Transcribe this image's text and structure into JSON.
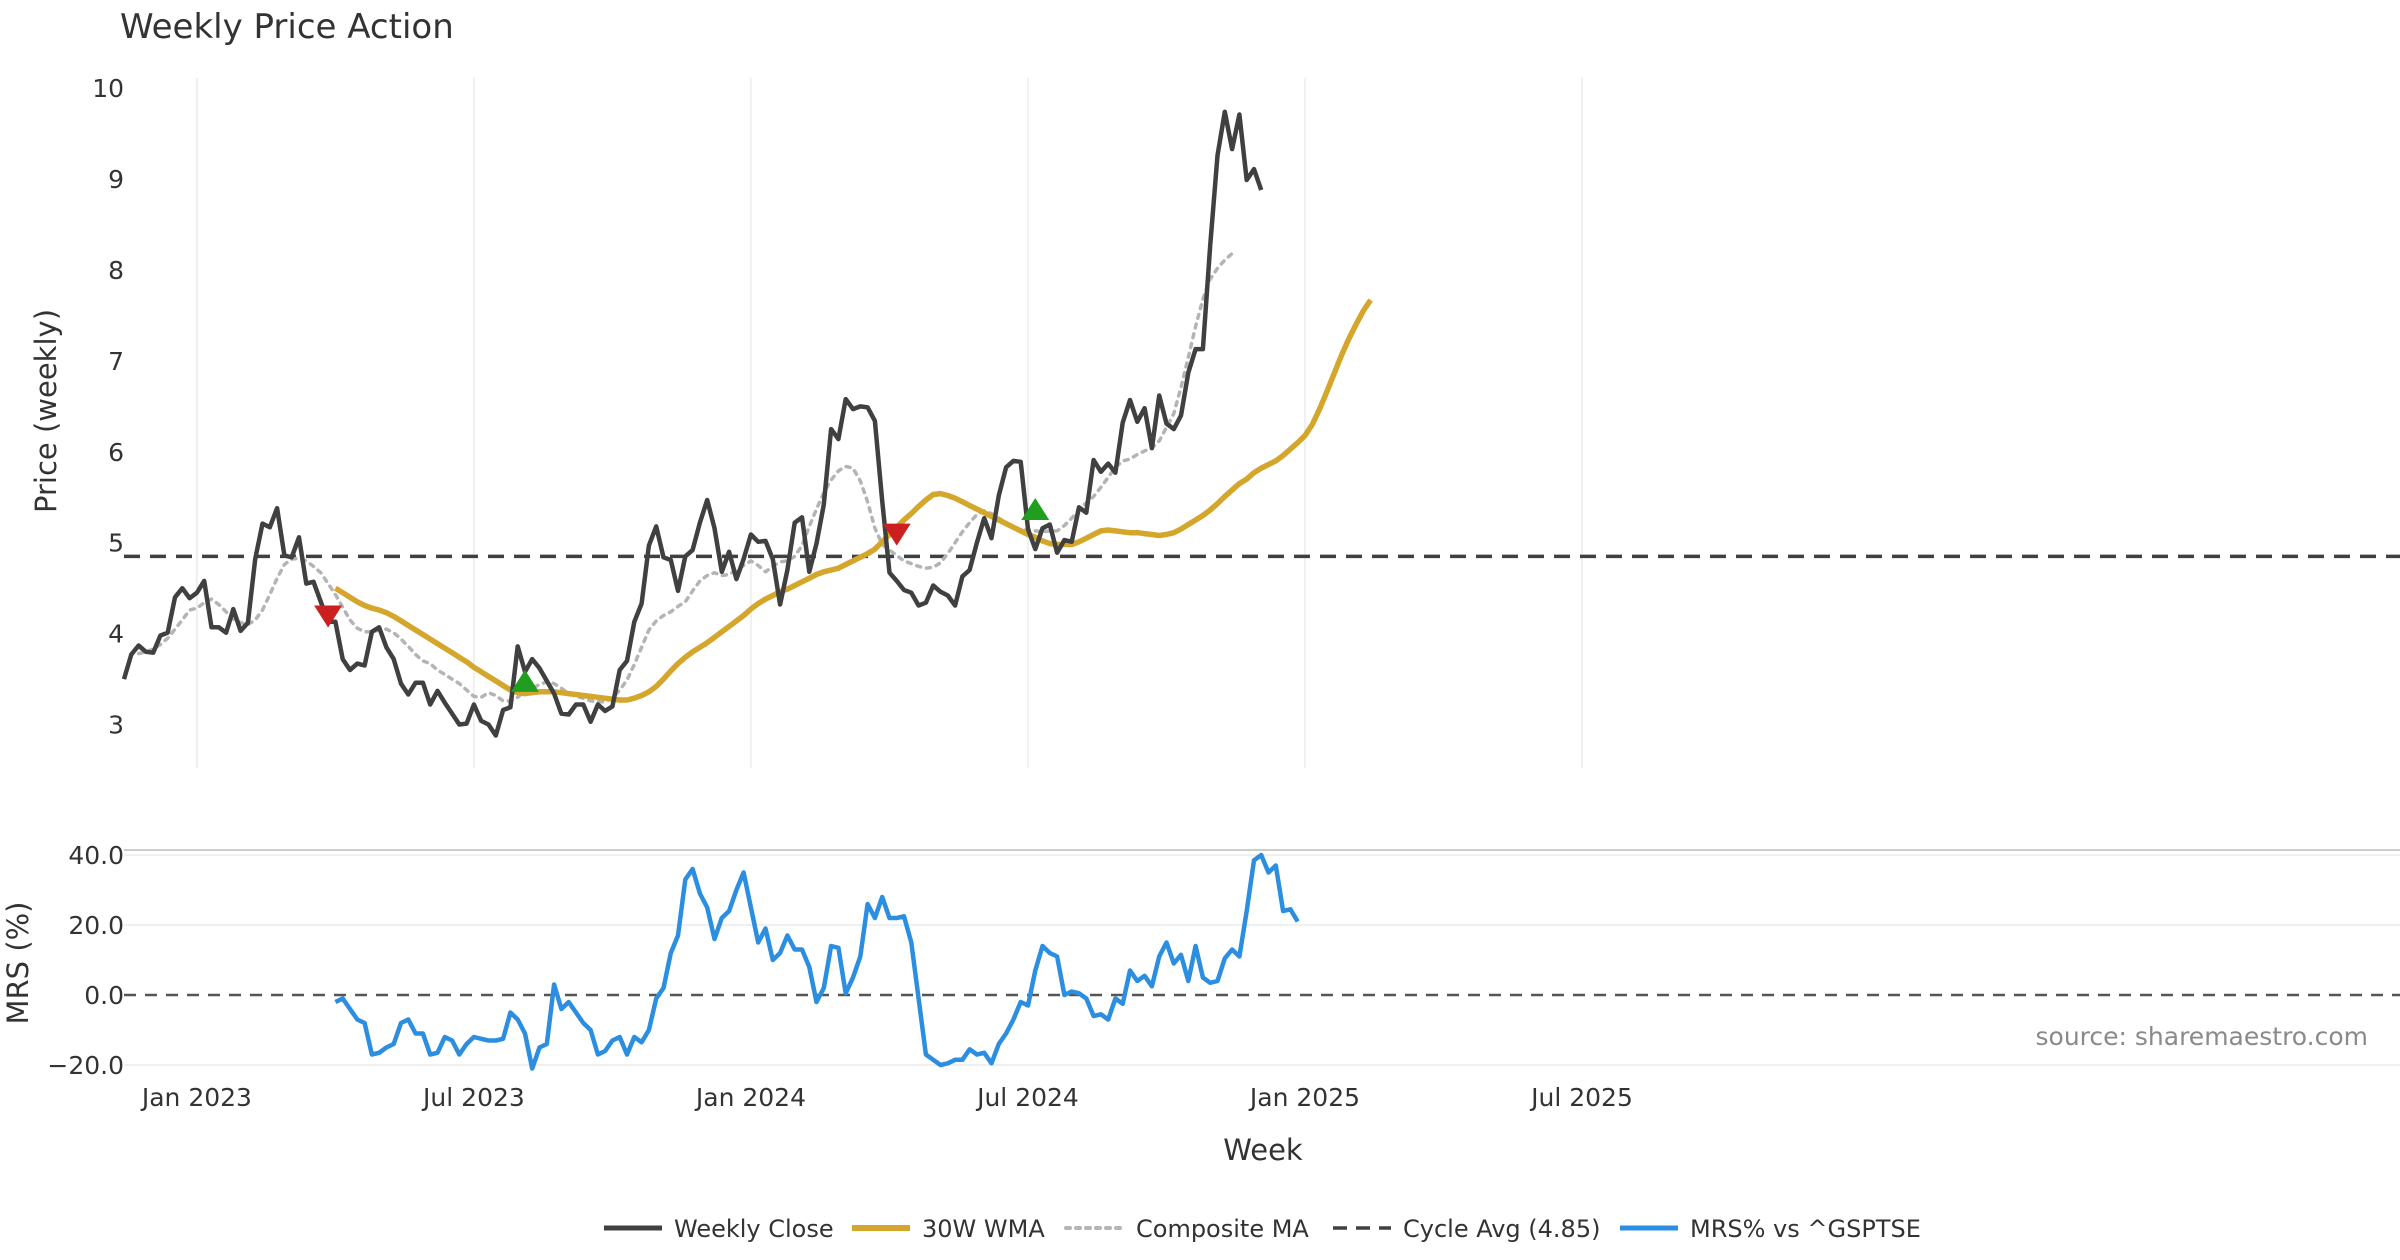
{
  "chart_data": {
    "type": "line",
    "title": "Weekly Price Action",
    "xlabel": "Week",
    "x_ticks": [
      "Jan 2023",
      "Jul 2023",
      "Jan 2024",
      "Jul 2024",
      "Jan 2025",
      "Jul 2025"
    ],
    "price_panel": {
      "ylabel": "Price (weekly)",
      "ylim": [
        2.5,
        10.2
      ],
      "y_ticks": [
        "3",
        "4",
        "5",
        "6",
        "7",
        "8",
        "9",
        "10"
      ],
      "cycle_avg": 4.85,
      "grid": "vertical"
    },
    "mrs_panel": {
      "ylabel": "MRS (%)",
      "ylim": [
        -22,
        42
      ],
      "y_ticks": [
        "40.0",
        "20.0",
        "0.0",
        "−20.0"
      ],
      "zero_line": 0,
      "grid": "horizontal"
    },
    "series": [
      {
        "name": "Weekly Close",
        "color": "#404040",
        "style": "solid",
        "panel": "price",
        "start_week": 0,
        "values": [
          3.5,
          3.77,
          3.87,
          3.8,
          3.79,
          3.98,
          4.01,
          4.4,
          4.5,
          4.39,
          4.45,
          4.58,
          4.07,
          4.07,
          4.01,
          4.27,
          4.03,
          4.12,
          4.82,
          5.21,
          5.17,
          5.38,
          4.86,
          4.84,
          5.06,
          4.55,
          4.57,
          4.35,
          4.13,
          4.13,
          3.72,
          3.6,
          3.67,
          3.65,
          4.02,
          4.07,
          3.85,
          3.72,
          3.45,
          3.33,
          3.46,
          3.46,
          3.22,
          3.37,
          3.24,
          3.12,
          3.0,
          3.01,
          3.22,
          3.04,
          3.0,
          2.88,
          3.16,
          3.19,
          3.86,
          3.58,
          3.72,
          3.62,
          3.48,
          3.34,
          3.12,
          3.11,
          3.22,
          3.22,
          3.03,
          3.22,
          3.15,
          3.2,
          3.6,
          3.7,
          4.13,
          4.33,
          4.97,
          5.18,
          4.84,
          4.81,
          4.47,
          4.85,
          4.92,
          5.22,
          5.47,
          5.16,
          4.68,
          4.9,
          4.6,
          4.82,
          5.09,
          5.01,
          5.02,
          4.82,
          4.32,
          4.7,
          5.22,
          5.28,
          4.68,
          4.99,
          5.42,
          6.25,
          6.14,
          6.58,
          6.47,
          6.5,
          6.49,
          6.34,
          5.46,
          4.67,
          4.58,
          4.48,
          4.45,
          4.31,
          4.34,
          4.53,
          4.46,
          4.42,
          4.31,
          4.63,
          4.7,
          5.0,
          5.27,
          5.05,
          5.52,
          5.83,
          5.9,
          5.89,
          5.15,
          4.93,
          5.16,
          5.2,
          4.89,
          5.03,
          5.01,
          5.39,
          5.33,
          5.91,
          5.78,
          5.87,
          5.77,
          6.32,
          6.57,
          6.33,
          6.48,
          6.04,
          6.62,
          6.31,
          6.25,
          6.4,
          6.87,
          7.13,
          7.13,
          8.27,
          9.26,
          9.74,
          9.33,
          9.71,
          8.99,
          9.11,
          8.88
        ]
      },
      {
        "name": "30W WMA",
        "color": "#d4a72c",
        "style": "solid",
        "panel": "price",
        "start_week": 29,
        "values": [
          4.5,
          4.45,
          4.4,
          4.35,
          4.31,
          4.28,
          4.26,
          4.23,
          4.19,
          4.14,
          4.09,
          4.04,
          3.99,
          3.94,
          3.89,
          3.84,
          3.79,
          3.74,
          3.69,
          3.63,
          3.58,
          3.53,
          3.48,
          3.43,
          3.38,
          3.35,
          3.34,
          3.35,
          3.36,
          3.36,
          3.36,
          3.35,
          3.34,
          3.33,
          3.32,
          3.31,
          3.3,
          3.29,
          3.28,
          3.27,
          3.27,
          3.29,
          3.32,
          3.36,
          3.42,
          3.5,
          3.59,
          3.67,
          3.74,
          3.8,
          3.85,
          3.9,
          3.96,
          4.02,
          4.08,
          4.14,
          4.2,
          4.27,
          4.33,
          4.38,
          4.42,
          4.46,
          4.49,
          4.53,
          4.57,
          4.61,
          4.65,
          4.68,
          4.7,
          4.72,
          4.76,
          4.8,
          4.84,
          4.88,
          4.93,
          5.01,
          5.09,
          5.17,
          5.25,
          5.32,
          5.4,
          5.47,
          5.53,
          5.54,
          5.52,
          5.49,
          5.45,
          5.41,
          5.37,
          5.33,
          5.29,
          5.25,
          5.21,
          5.17,
          5.13,
          5.09,
          5.06,
          5.02,
          4.99,
          4.98,
          4.98,
          4.98,
          5.01,
          5.05,
          5.09,
          5.13,
          5.14,
          5.13,
          5.12,
          5.11,
          5.11,
          5.1,
          5.09,
          5.08,
          5.09,
          5.11,
          5.15,
          5.2,
          5.25,
          5.3,
          5.36,
          5.43,
          5.51,
          5.58,
          5.65,
          5.7,
          5.77,
          5.82,
          5.86,
          5.9,
          5.96,
          6.03,
          6.1,
          6.18,
          6.3,
          6.47,
          6.66,
          6.86,
          7.06,
          7.24,
          7.4,
          7.55,
          7.67
        ]
      },
      {
        "name": "Composite MA",
        "color": "#b4b4b4",
        "style": "dotted",
        "panel": "price",
        "start_week": 2,
        "values": [
          3.78,
          3.8,
          3.83,
          3.88,
          3.95,
          4.05,
          4.15,
          4.26,
          4.28,
          4.34,
          4.38,
          4.32,
          4.24,
          4.16,
          4.12,
          4.1,
          4.15,
          4.26,
          4.43,
          4.61,
          4.76,
          4.82,
          4.83,
          4.8,
          4.74,
          4.67,
          4.55,
          4.43,
          4.29,
          4.15,
          4.06,
          4.02,
          4.02,
          4.04,
          4.05,
          4.01,
          3.94,
          3.86,
          3.77,
          3.7,
          3.67,
          3.6,
          3.55,
          3.5,
          3.45,
          3.38,
          3.31,
          3.3,
          3.35,
          3.32,
          3.26,
          3.26,
          3.3,
          3.37,
          3.4,
          3.44,
          3.47,
          3.45,
          3.4,
          3.34,
          3.31,
          3.29,
          3.26,
          3.25,
          3.25,
          3.29,
          3.38,
          3.49,
          3.66,
          3.85,
          4.04,
          4.14,
          4.2,
          4.24,
          4.3,
          4.35,
          4.47,
          4.58,
          4.64,
          4.67,
          4.64,
          4.65,
          4.7,
          4.75,
          4.8,
          4.75,
          4.68,
          4.74,
          4.79,
          4.8,
          4.85,
          4.97,
          5.18,
          5.37,
          5.55,
          5.69,
          5.79,
          5.84,
          5.82,
          5.68,
          5.45,
          5.16,
          4.98,
          4.92,
          4.86,
          4.8,
          4.77,
          4.74,
          4.72,
          4.73,
          4.78,
          4.88,
          5.0,
          5.12,
          5.22,
          5.31,
          5.35,
          5.32,
          5.27,
          5.22,
          5.18,
          5.14,
          5.14,
          5.13,
          5.12,
          5.13,
          5.13,
          5.19,
          5.27,
          5.36,
          5.44,
          5.51,
          5.61,
          5.72,
          5.83,
          5.9,
          5.92,
          5.97,
          6.01,
          6.04,
          6.12,
          6.27,
          6.42,
          6.71,
          7.04,
          7.38,
          7.68,
          7.9,
          8.02,
          8.11,
          8.18
        ]
      },
      {
        "name": "MRS% vs ^GSPTSE",
        "color": "#2b8ee0",
        "style": "solid",
        "panel": "mrs",
        "start_week": 29,
        "values": [
          -2.0,
          -1.0,
          -4.0,
          -7.0,
          -8.0,
          -17.0,
          -16.5,
          -15.0,
          -14.0,
          -8.0,
          -7.0,
          -11.0,
          -11.0,
          -17.0,
          -16.5,
          -12.0,
          -13.0,
          -17.0,
          -14.0,
          -12.0,
          -12.5,
          -13.0,
          -13.0,
          -12.5,
          -5.0,
          -7.0,
          -11.0,
          -21.0,
          -15.0,
          -14.0,
          3.0,
          -4.0,
          -2.0,
          -5.0,
          -8.0,
          -10.0,
          -17.0,
          -16.0,
          -13.0,
          -12.0,
          -17.0,
          -12.0,
          -13.5,
          -10.0,
          -1.0,
          2.0,
          12.0,
          17.0,
          33.0,
          36.0,
          29.0,
          25.0,
          16.0,
          22.0,
          24.0,
          30.0,
          35.0,
          25.0,
          15.0,
          19.0,
          10.0,
          12.0,
          17.0,
          13.0,
          13.0,
          8.0,
          -2.0,
          2.0,
          14.0,
          13.5,
          0.5,
          5.0,
          11.0,
          26.0,
          22.0,
          28.0,
          22.0,
          22.0,
          22.5,
          15.0,
          -1.0,
          -17.0,
          -18.5,
          -20.0,
          -19.5,
          -18.5,
          -18.5,
          -15.5,
          -17.0,
          -16.5,
          -19.5,
          -14.0,
          -11.0,
          -7.0,
          -2.0,
          -3.0,
          7.0,
          14.0,
          12.0,
          11.0,
          0.0,
          1.0,
          0.5,
          -1.0,
          -6.0,
          -5.5,
          -7.0,
          -1.0,
          -2.5,
          7.0,
          4.0,
          5.5,
          2.5,
          11.0,
          15.0,
          9.0,
          11.5,
          4.0,
          14.0,
          5.0,
          3.5,
          4.0,
          10.5,
          13.0,
          11.0,
          24.0,
          38.5,
          40.0,
          35.0,
          37.0,
          24.0,
          24.5,
          21.0
        ]
      }
    ],
    "signals": {
      "sell": [
        {
          "week": 28,
          "value": 4.2
        },
        {
          "week": 106,
          "value": 5.1
        }
      ],
      "buy": [
        {
          "week": 55,
          "value": 3.47
        },
        {
          "week": 125,
          "value": 5.36
        }
      ]
    },
    "legend_placement": "bottom-center",
    "legend": [
      "Weekly Close",
      "30W WMA",
      "Composite MA",
      "Cycle Avg (4.85)",
      "MRS% vs ^GSPTSE"
    ],
    "source_note": "source: sharemaestro.com"
  }
}
